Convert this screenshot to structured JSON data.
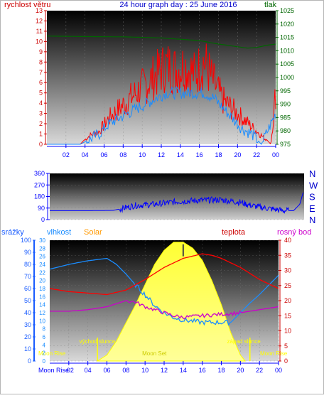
{
  "title": "24 hour graph day : 25 June 2016",
  "colors": {
    "wind": "#ff0000",
    "pressure": "#006600",
    "rain": "#1a5cff",
    "humidity": "#1a8cff",
    "solar": "#ff9900",
    "temperature": "#ff0000",
    "dewpoint": "#cc00cc",
    "direction": "#0000ff",
    "temp_axis": "#cc0000",
    "time_axis": "#0000ff"
  },
  "chart_data": [
    {
      "type": "line",
      "panel": "wind-pressure",
      "left_axis_label": "rychlost větru",
      "right_axis_label": "tlak",
      "left_ticks": [
        "0",
        "1",
        "2",
        "3",
        "4",
        "5",
        "6",
        "7",
        "8",
        "9",
        "10",
        "11",
        "12",
        "13"
      ],
      "left_ylim": [
        0,
        13
      ],
      "right_ticks": [
        "975",
        "980",
        "985",
        "990",
        "995",
        "1000",
        "1005",
        "1010",
        "1015",
        "1020",
        "1025"
      ],
      "right_ylim": [
        975,
        1025
      ],
      "x_tick_labels": [
        "02",
        "04",
        "06",
        "08",
        "10",
        "12",
        "14",
        "16",
        "18",
        "20",
        "22",
        "00"
      ],
      "x_hours": [
        0,
        24
      ],
      "series": [
        {
          "role": "gust",
          "hours": [
            0,
            2,
            3.5,
            4.5,
            5.5,
            6.5,
            7.5,
            8.5,
            9.5,
            10.5,
            11.5,
            12.5,
            13.5,
            14.5,
            15.5,
            16.5,
            17.5,
            18.5,
            19.5,
            20.5,
            21.5,
            22.5,
            23.5,
            24
          ],
          "values": [
            0,
            0,
            0,
            1,
            1.5,
            3,
            4,
            5,
            6,
            7,
            8,
            9,
            8.5,
            9,
            8,
            9.5,
            7,
            5,
            4,
            3,
            2,
            1,
            0,
            6
          ]
        },
        {
          "role": "average",
          "hours": [
            0,
            3.5,
            4.5,
            5.5,
            6.5,
            7.5,
            8.5,
            9.5,
            10.5,
            11.5,
            12.5,
            13.5,
            14.5,
            15.5,
            16.5,
            17.5,
            18.5,
            19.5,
            20.5,
            21.5,
            22.5,
            24
          ],
          "values": [
            0,
            0,
            0.5,
            1,
            2,
            2.5,
            3,
            3.5,
            4,
            4.5,
            5,
            5,
            5,
            5,
            5,
            4.5,
            3.5,
            2.5,
            1.5,
            1,
            0,
            3
          ]
        },
        {
          "role": "pressure",
          "hours": [
            0,
            4,
            8,
            12,
            16,
            18,
            20,
            21,
            22,
            23,
            24
          ],
          "values": [
            1015.5,
            1015.3,
            1015.2,
            1014.8,
            1013.8,
            1012.5,
            1011.5,
            1011,
            1011.2,
            1012,
            1012.5
          ]
        }
      ]
    },
    {
      "type": "line",
      "panel": "wind-direction",
      "left_ticks": [
        "0",
        "90",
        "180",
        "270",
        "360"
      ],
      "left_ylim": [
        0,
        360
      ],
      "direction_labels": [
        "N",
        "W",
        "S",
        "E",
        "N"
      ],
      "series": [
        {
          "role": "direction",
          "hours": [
            0,
            4,
            6,
            7,
            8,
            10,
            12,
            14,
            16,
            18,
            19,
            20,
            22,
            23,
            23.6,
            23.9
          ],
          "values": [
            70,
            70,
            72,
            90,
            110,
            120,
            140,
            150,
            155,
            135,
            110,
            95,
            70,
            70,
            120,
            210
          ]
        }
      ]
    },
    {
      "type": "line",
      "panel": "temperature-humidity-solar",
      "legend": [
        "srážky",
        "vlhkost",
        "Solar",
        "teplota",
        "rosný bod"
      ],
      "left_ticks": [
        "0",
        "10",
        "20",
        "30",
        "40",
        "50",
        "60",
        "70",
        "80",
        "90",
        "100"
      ],
      "left_ylim": [
        0,
        100
      ],
      "mid_ticks": [
        "0",
        "2",
        "4",
        "6",
        "8",
        "10",
        "12",
        "14",
        "16",
        "18",
        "20",
        "22",
        "24",
        "26",
        "28",
        "30"
      ],
      "mid_ylim": [
        0,
        30
      ],
      "right_ticks": [
        "0",
        "5",
        "10",
        "15",
        "20",
        "25",
        "30",
        "35",
        "40"
      ],
      "right_ylim": [
        0,
        40
      ],
      "x_tick_labels": [
        "02",
        "04",
        "06",
        "08",
        "10",
        "12",
        "14",
        "16",
        "18",
        "20",
        "22",
        "00"
      ],
      "annotations": {
        "moon_rise": "Moon Rise",
        "moon_set": "Moon Set",
        "sunrise": "východ slunce",
        "sunset": "západ slunce",
        "x_prefix": "Moon Rise"
      },
      "series": [
        {
          "role": "humidity",
          "hours": [
            0,
            2,
            4,
            5,
            6,
            7,
            8,
            9,
            10,
            11,
            12,
            13,
            14,
            15,
            16,
            17,
            18,
            19,
            20,
            21,
            22,
            23,
            24
          ],
          "values": [
            76,
            80,
            83,
            84,
            85,
            80,
            72,
            63,
            55,
            46,
            40,
            36,
            34,
            33,
            32,
            32,
            32,
            32,
            40,
            48,
            55,
            63,
            71
          ]
        },
        {
          "role": "solar",
          "hours": [
            5,
            6,
            7,
            8,
            9,
            10,
            11,
            12,
            13,
            14,
            15,
            16,
            17,
            18,
            19,
            20,
            20.5
          ],
          "values": [
            0,
            1.5,
            5,
            9.5,
            14,
            19,
            24,
            27.5,
            29.5,
            29.5,
            28,
            25,
            20,
            14,
            7,
            1.5,
            0
          ]
        },
        {
          "role": "temperature",
          "hours": [
            0,
            2,
            4,
            6,
            8,
            10,
            12,
            14,
            16,
            17,
            18,
            20,
            22,
            24
          ],
          "values": [
            24,
            23,
            22.5,
            22,
            23.5,
            27,
            31,
            34,
            35.5,
            35,
            34,
            31,
            27,
            24
          ]
        },
        {
          "role": "dewpoint",
          "hours": [
            0,
            2,
            4,
            6,
            8,
            9,
            10,
            11,
            12,
            13,
            14,
            16,
            18,
            20,
            22,
            24
          ],
          "values": [
            16.5,
            16.5,
            17,
            18,
            20,
            19.5,
            18,
            17,
            16,
            15,
            14.5,
            15,
            15.5,
            16,
            17,
            18
          ]
        }
      ]
    }
  ]
}
